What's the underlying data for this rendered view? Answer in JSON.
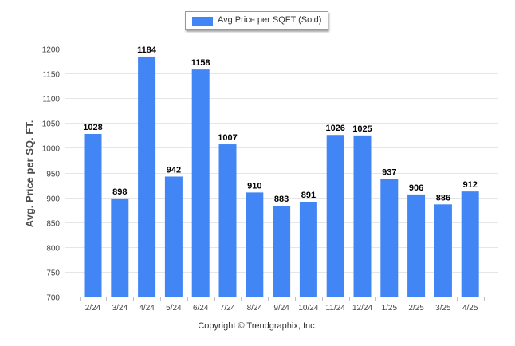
{
  "chart_data": {
    "type": "bar",
    "categories": [
      "2/24",
      "3/24",
      "4/24",
      "5/24",
      "6/24",
      "7/24",
      "8/24",
      "9/24",
      "10/24",
      "11/24",
      "12/24",
      "1/25",
      "2/25",
      "3/25",
      "4/25"
    ],
    "series": [
      {
        "name": "Avg Price per SQFT (Sold)",
        "values": [
          1028,
          898,
          1184,
          942,
          1158,
          1007,
          910,
          883,
          891,
          1026,
          1025,
          937,
          906,
          886,
          912
        ]
      }
    ],
    "title": "",
    "xlabel": "",
    "ylabel": "Avg. Price per SQ. FT.",
    "ylim": [
      700,
      1200
    ],
    "yticks": [
      "700",
      "750",
      "800",
      "850",
      "900",
      "950",
      "1000",
      "1050",
      "1100",
      "1150",
      "1200"
    ],
    "grid": true,
    "legend_position": "top-center",
    "bar_color": "#4285f4",
    "data_labels": true
  },
  "footer": {
    "copyright": "Copyright © Trendgraphix, Inc."
  }
}
